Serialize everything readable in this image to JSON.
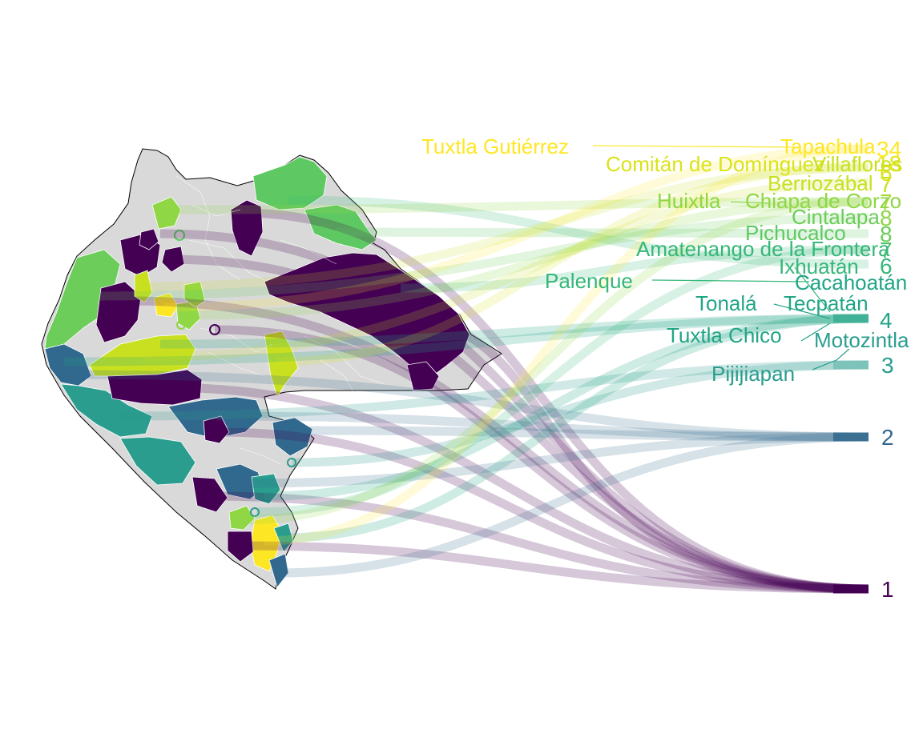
{
  "figure": {
    "palette": {
      "v1": "#440154",
      "v2": "#31688e",
      "v3": "#2a9d8f",
      "v4": "#21a586",
      "v6": "#35b779",
      "v7": "#5ec962",
      "v8": "#8fd744",
      "v9": "#c8e020",
      "v10": "#fde725",
      "missing": "#d9d9d9",
      "border": "#ffffff",
      "outline": "#000000"
    },
    "ranks": [
      {
        "label": "1",
        "color": "#440154"
      },
      {
        "label": "2",
        "color": "#31688e"
      },
      {
        "label": "3",
        "color": "#2a9d8f"
      },
      {
        "label": "4",
        "color": "#21a586"
      },
      {
        "label": "6",
        "color": "#35b779"
      },
      {
        "label": "7",
        "color": "#4fc16b"
      },
      {
        "label": "8",
        "color": "#6ccd5a"
      },
      {
        "label": "8",
        "color": "#8fd744"
      },
      {
        "label": "7",
        "color": "#a8db34"
      },
      {
        "label": "7",
        "color": "#c8e020"
      },
      {
        "label": "6",
        "color": "#dae319"
      },
      {
        "label": "18",
        "color": "#e5e419"
      },
      {
        "label": "34",
        "color": "#fde725"
      }
    ],
    "municipalities": [
      {
        "name": "Tuxtla Gutiérrez",
        "color": "#fde725"
      },
      {
        "name": "Tapachula",
        "color": "#fde725"
      },
      {
        "name": "Comitán de Domínguez",
        "color": "#dae319"
      },
      {
        "name": "Villaflores",
        "color": "#c8e020"
      },
      {
        "name": "Berriozábal",
        "color": "#c8e020"
      },
      {
        "name": "Huixtla",
        "color": "#8fd744"
      },
      {
        "name": "Chiapa de Corzo",
        "color": "#8fd744"
      },
      {
        "name": "Cintalapa",
        "color": "#6ccd5a"
      },
      {
        "name": "Pichucalco",
        "color": "#5ec962"
      },
      {
        "name": "Amatenango de la Frontera",
        "color": "#35b779"
      },
      {
        "name": "Ixhuatán",
        "color": "#35b779"
      },
      {
        "name": "Palenque",
        "color": "#35b779"
      },
      {
        "name": "Cacahoatán",
        "color": "#21a586"
      },
      {
        "name": "Tonalá",
        "color": "#21a586"
      },
      {
        "name": "Tecpatán",
        "color": "#21a586"
      },
      {
        "name": "Tuxtla Chico",
        "color": "#21a586"
      },
      {
        "name": "Motozintla",
        "color": "#2a9d8f"
      },
      {
        "name": "Pijijiapan",
        "color": "#2a9d8f"
      }
    ]
  }
}
